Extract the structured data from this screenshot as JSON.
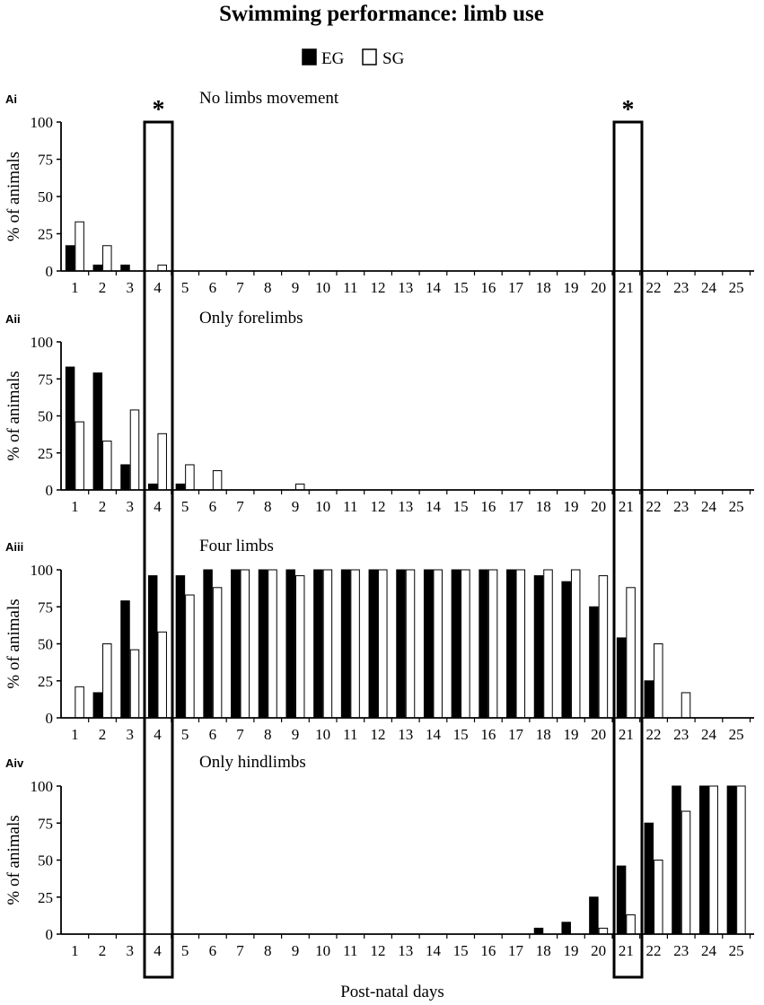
{
  "title": "Swimming performance: limb use",
  "legend": {
    "items": [
      {
        "label": "EG",
        "fill": "#000000"
      },
      {
        "label": "SG",
        "fill": "#ffffff"
      }
    ],
    "placement": "top-center"
  },
  "xlabel": "Post-natal days",
  "ylabel": "% of animals",
  "significance_marker": "*",
  "highlighted_days": [
    "4",
    "21"
  ],
  "colors": {
    "eg": "#000000",
    "sg": "#ffffff",
    "outline": "#000000"
  },
  "chart_data": [
    {
      "type": "bar",
      "panel": "Ai",
      "title": "No limbs movement",
      "categories": [
        "1",
        "2",
        "3",
        "4",
        "5",
        "6",
        "7",
        "8",
        "9",
        "10",
        "11",
        "12",
        "13",
        "14",
        "15",
        "16",
        "17",
        "18",
        "19",
        "20",
        "21",
        "22",
        "23",
        "24",
        "25"
      ],
      "ylim": [
        0,
        100
      ],
      "yticks": [
        "0",
        "25",
        "50",
        "75",
        "100"
      ],
      "series": [
        {
          "name": "EG",
          "values": [
            17,
            4,
            4,
            0,
            0,
            0,
            0,
            0,
            0,
            0,
            0,
            0,
            0,
            0,
            0,
            0,
            0,
            0,
            0,
            0,
            0,
            0,
            0,
            0,
            0
          ]
        },
        {
          "name": "SG",
          "values": [
            33,
            17,
            0,
            4,
            0,
            0,
            0,
            0,
            0,
            0,
            0,
            0,
            0,
            0,
            0,
            0,
            0,
            0,
            0,
            0,
            0,
            0,
            0,
            0,
            0
          ]
        }
      ]
    },
    {
      "type": "bar",
      "panel": "Aii",
      "title": "Only forelimbs",
      "categories": [
        "1",
        "2",
        "3",
        "4",
        "5",
        "6",
        "7",
        "8",
        "9",
        "10",
        "11",
        "12",
        "13",
        "14",
        "15",
        "16",
        "17",
        "18",
        "19",
        "20",
        "21",
        "22",
        "23",
        "24",
        "25"
      ],
      "ylim": [
        0,
        100
      ],
      "yticks": [
        "0",
        "25",
        "50",
        "75",
        "100"
      ],
      "series": [
        {
          "name": "EG",
          "values": [
            83,
            79,
            17,
            4,
            4,
            0,
            0,
            0,
            0,
            0,
            0,
            0,
            0,
            0,
            0,
            0,
            0,
            0,
            0,
            0,
            0,
            0,
            0,
            0,
            0
          ]
        },
        {
          "name": "SG",
          "values": [
            46,
            33,
            54,
            38,
            17,
            13,
            0,
            0,
            4,
            0,
            0,
            0,
            0,
            0,
            0,
            0,
            0,
            0,
            0,
            0,
            0,
            0,
            0,
            0,
            0
          ]
        }
      ]
    },
    {
      "type": "bar",
      "panel": "Aiii",
      "title": "Four limbs",
      "categories": [
        "1",
        "2",
        "3",
        "4",
        "5",
        "6",
        "7",
        "8",
        "9",
        "10",
        "11",
        "12",
        "13",
        "14",
        "15",
        "16",
        "17",
        "18",
        "19",
        "20",
        "21",
        "22",
        "23",
        "24",
        "25"
      ],
      "ylim": [
        0,
        100
      ],
      "yticks": [
        "0",
        "25",
        "50",
        "75",
        "100"
      ],
      "series": [
        {
          "name": "EG",
          "values": [
            0,
            17,
            79,
            96,
            96,
            100,
            100,
            100,
            100,
            100,
            100,
            100,
            100,
            100,
            100,
            100,
            100,
            96,
            92,
            75,
            54,
            25,
            0,
            0,
            0
          ]
        },
        {
          "name": "SG",
          "values": [
            21,
            50,
            46,
            58,
            83,
            88,
            100,
            100,
            96,
            100,
            100,
            100,
            100,
            100,
            100,
            100,
            100,
            100,
            100,
            96,
            88,
            50,
            17,
            0,
            0
          ]
        }
      ]
    },
    {
      "type": "bar",
      "panel": "Aiv",
      "title": "Only hindlimbs",
      "categories": [
        "1",
        "2",
        "3",
        "4",
        "5",
        "6",
        "7",
        "8",
        "9",
        "10",
        "11",
        "12",
        "13",
        "14",
        "15",
        "16",
        "17",
        "18",
        "19",
        "20",
        "21",
        "22",
        "23",
        "24",
        "25"
      ],
      "ylim": [
        0,
        100
      ],
      "yticks": [
        "0",
        "25",
        "50",
        "75",
        "100"
      ],
      "series": [
        {
          "name": "EG",
          "values": [
            0,
            0,
            0,
            0,
            0,
            0,
            0,
            0,
            0,
            0,
            0,
            0,
            0,
            0,
            0,
            0,
            0,
            4,
            8,
            25,
            46,
            75,
            100,
            100,
            100
          ]
        },
        {
          "name": "SG",
          "values": [
            0,
            0,
            0,
            0,
            0,
            0,
            0,
            0,
            0,
            0,
            0,
            0,
            0,
            0,
            0,
            0,
            0,
            0,
            0,
            4,
            13,
            50,
            83,
            100,
            100
          ]
        }
      ]
    }
  ]
}
